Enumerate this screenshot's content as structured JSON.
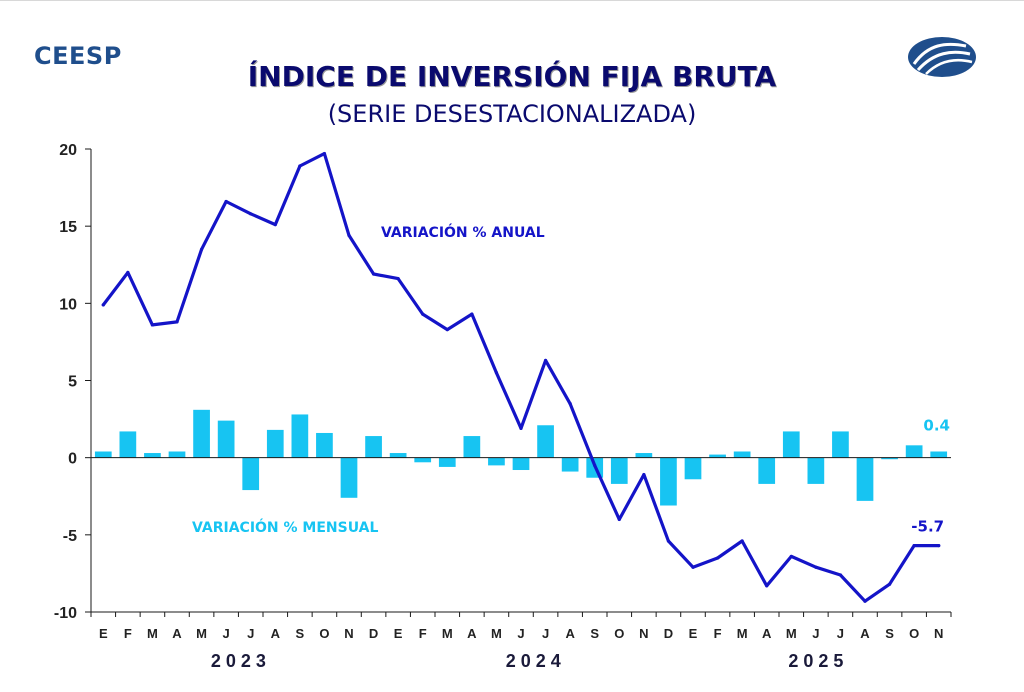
{
  "header": {
    "brand": "CEESP",
    "title": "ÍNDICE DE INVERSIÓN FIJA BRUTA",
    "subtitle": "(SERIE DESESTACIONALIZADA)"
  },
  "colors": {
    "annual": "#1414c8",
    "monthly": "#17c4f2",
    "axis": "#1a1a1a",
    "title": "#0a0a6e",
    "brand": "#1f4e8c"
  },
  "chart_data": {
    "type": "bar+line",
    "ylim": [
      -10,
      20
    ],
    "yticks": [
      -10,
      -5,
      0,
      5,
      10,
      15,
      20
    ],
    "ytick_labels": [
      "-10",
      "-5",
      "0",
      "5",
      "10",
      "15",
      "20"
    ],
    "categories": [
      "E",
      "F",
      "M",
      "A",
      "M",
      "J",
      "J",
      "A",
      "S",
      "O",
      "N",
      "D",
      "E",
      "F",
      "M",
      "A",
      "M",
      "J",
      "J",
      "A",
      "S",
      "O",
      "N",
      "D",
      "E",
      "F",
      "M",
      "A",
      "M",
      "J",
      "J",
      "A",
      "S",
      "O",
      "N"
    ],
    "years": [
      {
        "label": "2 0 2 3",
        "start": 0,
        "end": 11
      },
      {
        "label": "2 0 2 4",
        "start": 12,
        "end": 23
      },
      {
        "label": "2 0 2 5",
        "start": 24,
        "end": 34
      }
    ],
    "series": [
      {
        "name": "VARIACIÓN % ANUAL",
        "kind": "line",
        "values": [
          9.9,
          12.0,
          8.6,
          8.8,
          13.5,
          16.6,
          15.8,
          15.1,
          18.9,
          19.7,
          14.4,
          11.9,
          11.6,
          9.3,
          8.3,
          9.3,
          5.5,
          1.9,
          6.3,
          3.5,
          -0.5,
          -4.0,
          -1.1,
          -5.4,
          -7.1,
          -6.5,
          -5.4,
          -8.3,
          -6.4,
          -7.1,
          -7.6,
          -9.3,
          -8.2,
          -5.7,
          -5.7
        ]
      },
      {
        "name": "VARIACIÓN % MENSUAL",
        "kind": "bar",
        "values": [
          0.4,
          1.7,
          0.3,
          0.4,
          3.1,
          2.4,
          -2.1,
          1.8,
          2.8,
          1.6,
          -2.6,
          1.4,
          0.3,
          -0.3,
          -0.6,
          1.4,
          -0.5,
          -0.8,
          2.1,
          -0.9,
          -1.3,
          -1.7,
          0.3,
          -3.1,
          -1.4,
          0.2,
          0.4,
          -1.7,
          1.7,
          -1.7,
          1.7,
          -2.8,
          -0.1,
          0.8,
          0.4
        ]
      }
    ],
    "annotations": {
      "annual_last": "-5.7",
      "monthly_last": "0.4"
    },
    "grid": false
  }
}
